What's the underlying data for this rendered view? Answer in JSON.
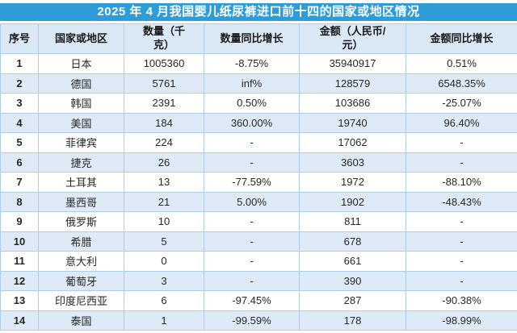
{
  "chart_data": {
    "type": "table",
    "title": "2025 年 4 月我国婴儿纸尿裤进口前十四的国家或地区情况",
    "headers": [
      "序号",
      "国家或地区",
      "数量（千\n克）",
      "数量同比增长",
      "金额（人民币/\n元）",
      "金额同比增长"
    ],
    "rows": [
      [
        "1",
        "日本",
        "1005360",
        "-8.75%",
        "35940917",
        "0.51%"
      ],
      [
        "2",
        "德国",
        "5761",
        "inf%",
        "128579",
        "6548.35%"
      ],
      [
        "3",
        "韩国",
        "2391",
        "0.50%",
        "103686",
        "-25.07%"
      ],
      [
        "4",
        "美国",
        "184",
        "360.00%",
        "19740",
        "96.40%"
      ],
      [
        "5",
        "菲律宾",
        "224",
        "-",
        "17062",
        "-"
      ],
      [
        "6",
        "捷克",
        "26",
        "-",
        "3603",
        "-"
      ],
      [
        "7",
        "土耳其",
        "13",
        "-77.59%",
        "1972",
        "-88.10%"
      ],
      [
        "8",
        "墨西哥",
        "21",
        "5.00%",
        "1902",
        "-48.43%"
      ],
      [
        "9",
        "俄罗斯",
        "10",
        "-",
        "811",
        "-"
      ],
      [
        "10",
        "希腊",
        "5",
        "-",
        "678",
        "-"
      ],
      [
        "11",
        "意大利",
        "0",
        "-",
        "661",
        "-"
      ],
      [
        "12",
        "葡萄牙",
        "3",
        "-",
        "390",
        "-"
      ],
      [
        "13",
        "印度尼西亚",
        "6",
        "-97.45%",
        "287",
        "-90.38%"
      ],
      [
        "14",
        "泰国",
        "1",
        "-99.59%",
        "178",
        "-98.99%"
      ]
    ]
  },
  "colors": {
    "title_bar_bg": "#2E9CD8",
    "title_text": "#FFFFFF",
    "header_bg": "#DBE8F5",
    "row_bg": "#FFFFFF",
    "row_alt_bg": "#DEEBF7",
    "grid": "#AECBE8",
    "text": "#262626"
  }
}
